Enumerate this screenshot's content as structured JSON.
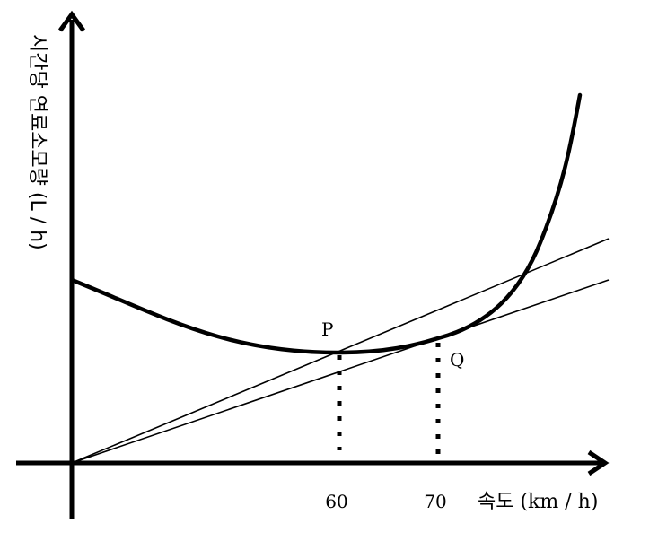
{
  "y_axis_label": "시간당 연료소모량 (L / h)",
  "x_axis_label": "속도 (km / h)",
  "points": {
    "p_label": "P",
    "q_label": "Q"
  },
  "ticks": {
    "t60": "60",
    "t70": "70"
  }
}
